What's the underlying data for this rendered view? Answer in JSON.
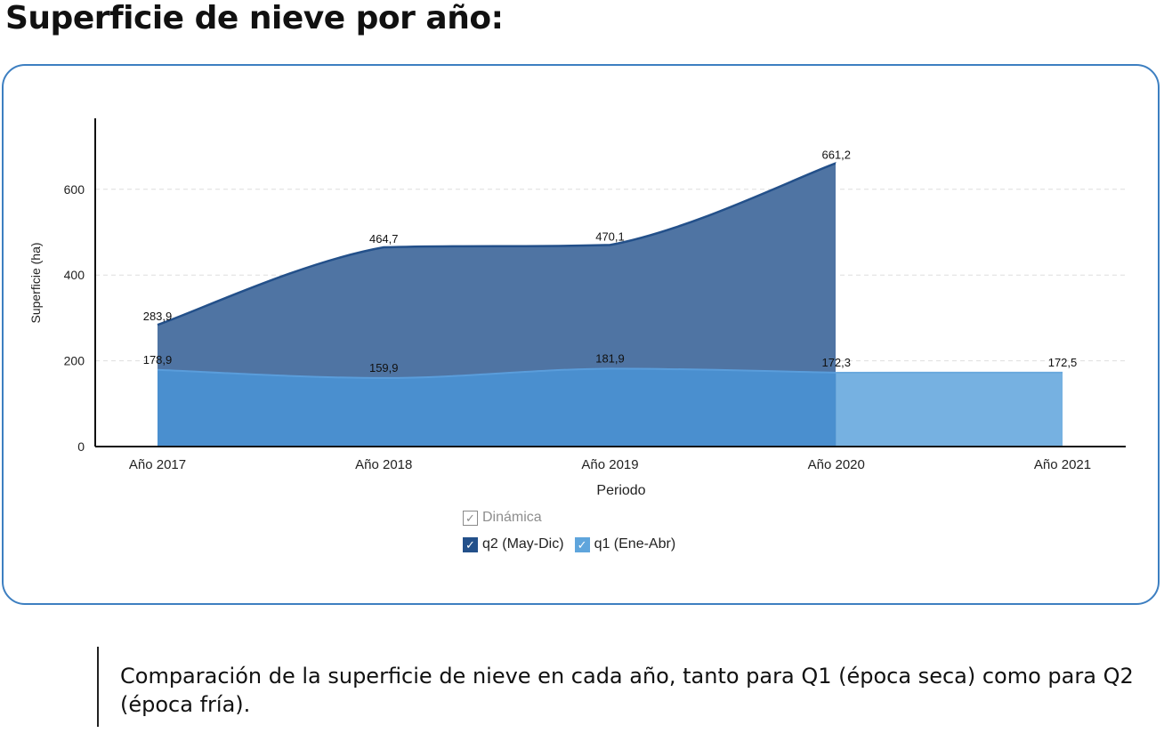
{
  "page": {
    "title": "Superficie de nieve por año:",
    "caption": "Comparación de la superficie de nieve en cada año, tanto para Q1 (época seca) como para Q2 (época fría)."
  },
  "legend": {
    "group_label": "Dinámica",
    "group_checked": true,
    "check_mark": "✓",
    "items": [
      {
        "label": "q2 (May-Dic)",
        "checked": true
      },
      {
        "label": "q1 (Ene-Abr)",
        "checked": true
      }
    ]
  },
  "chart_data": {
    "type": "area",
    "xlabel": "Periodo",
    "ylabel": "Superficie (ha)",
    "categories": [
      "Año 2017",
      "Año 2018",
      "Año 2019",
      "Año 2020",
      "Año 2021"
    ],
    "ylim": [
      0,
      760
    ],
    "yticks": [
      0,
      200,
      400,
      600
    ],
    "grid": true,
    "series": [
      {
        "name": "q2 (May-Dic)",
        "values": [
          283.9,
          464.7,
          470.1,
          661.2,
          null
        ],
        "labels": [
          "283,9",
          "464,7",
          "470,1",
          "661,2",
          null
        ],
        "color": "#23508a"
      },
      {
        "name": "q1 (Ene-Abr)",
        "values": [
          178.9,
          159.9,
          181.9,
          172.3,
          172.5
        ],
        "labels": [
          "178,9",
          "159,9",
          "181,9",
          "172,3",
          "172,5"
        ],
        "color": "#5fa5dc"
      }
    ]
  }
}
